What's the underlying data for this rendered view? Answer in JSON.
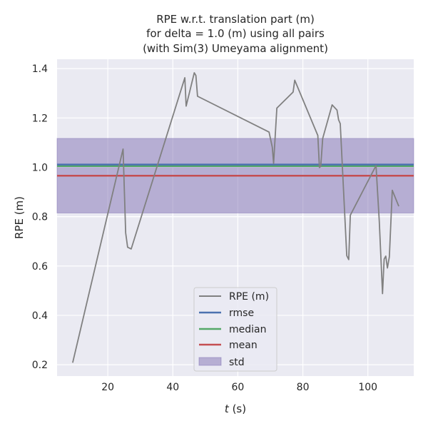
{
  "chart_data": {
    "type": "line",
    "title": [
      "RPE w.r.t. translation part (m)",
      "for delta = 1.0 (m) using all pairs",
      "(with Sim(3) Umeyama alignment)"
    ],
    "xlabel_italic": "t",
    "xlabel_rest": " (s)",
    "ylabel": "RPE (m)",
    "xlim": [
      4.4,
      114.1
    ],
    "ylim": [
      0.154,
      1.438
    ],
    "xticks": [
      20,
      40,
      60,
      80,
      100
    ],
    "yticks": [
      0.2,
      0.4,
      0.6,
      0.8,
      1.0,
      1.2,
      1.4
    ],
    "ytick_labels": [
      "0.2",
      "0.4",
      "0.6",
      "0.8",
      "1.0",
      "1.2",
      "1.4"
    ],
    "grid": true,
    "legend_placement": "lower-center",
    "series": [
      {
        "name": "RPE (m)",
        "color": "#808080",
        "x": [
          9.2,
          24.7,
          25.5,
          26.1,
          27.2,
          43.7,
          44.1,
          46.6,
          47.1,
          47.6,
          69.6,
          70.6,
          71.0,
          72.0,
          77.0,
          77.5,
          84.6,
          85.1,
          85.5,
          86.1,
          89.0,
          90.5,
          91.0,
          91.5,
          93.5,
          94.1,
          94.6,
          102.5,
          103.5,
          104.5,
          105.0,
          105.5,
          106.0,
          106.6,
          107.5,
          109.5
        ],
        "y": [
          0.208,
          1.074,
          0.734,
          0.676,
          0.669,
          1.363,
          1.248,
          1.383,
          1.372,
          1.288,
          1.143,
          1.081,
          1.016,
          1.24,
          1.305,
          1.353,
          1.129,
          0.999,
          1.004,
          1.117,
          1.253,
          1.232,
          1.192,
          1.177,
          0.642,
          0.626,
          0.806,
          1.007,
          0.782,
          0.488,
          0.628,
          0.64,
          0.592,
          0.637,
          0.907,
          0.842
        ]
      }
    ],
    "stats": {
      "rmse": {
        "name": "rmse",
        "value": 1.011,
        "color": "#4c72b0"
      },
      "median": {
        "name": "median",
        "value": 1.005,
        "color": "#55a868"
      },
      "mean": {
        "name": "mean",
        "value": 0.966,
        "color": "#c44e52"
      },
      "std": {
        "name": "std",
        "lower": 0.815,
        "upper": 1.117,
        "color": "#8172b3"
      }
    },
    "colors": {
      "background": "#eaeaf2",
      "grid": "#ffffff"
    }
  }
}
